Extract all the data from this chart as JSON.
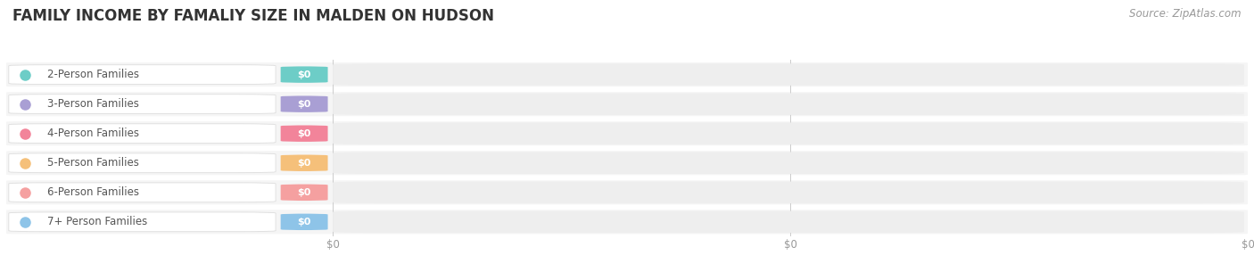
{
  "title": "FAMILY INCOME BY FAMALIY SIZE IN MALDEN ON HUDSON",
  "source": "Source: ZipAtlas.com",
  "categories": [
    "2-Person Families",
    "3-Person Families",
    "4-Person Families",
    "5-Person Families",
    "6-Person Families",
    "7+ Person Families"
  ],
  "values": [
    0,
    0,
    0,
    0,
    0,
    0
  ],
  "bar_colors": [
    "#6dcdc7",
    "#a99fd4",
    "#f2849a",
    "#f5c07a",
    "#f5a0a0",
    "#8ec4e8"
  ],
  "background_color": "#ffffff",
  "row_bg_color": "#f5f5f5",
  "bar_bg_color": "#eeeeee",
  "label_pill_bg": "#ffffff",
  "tick_labels": [
    "$0",
    "$0",
    "$0"
  ],
  "title_fontsize": 12,
  "label_fontsize": 8.5,
  "value_fontsize": 8,
  "source_fontsize": 8.5,
  "title_color": "#333333",
  "label_color": "#555555",
  "tick_color": "#999999",
  "source_color": "#999999"
}
